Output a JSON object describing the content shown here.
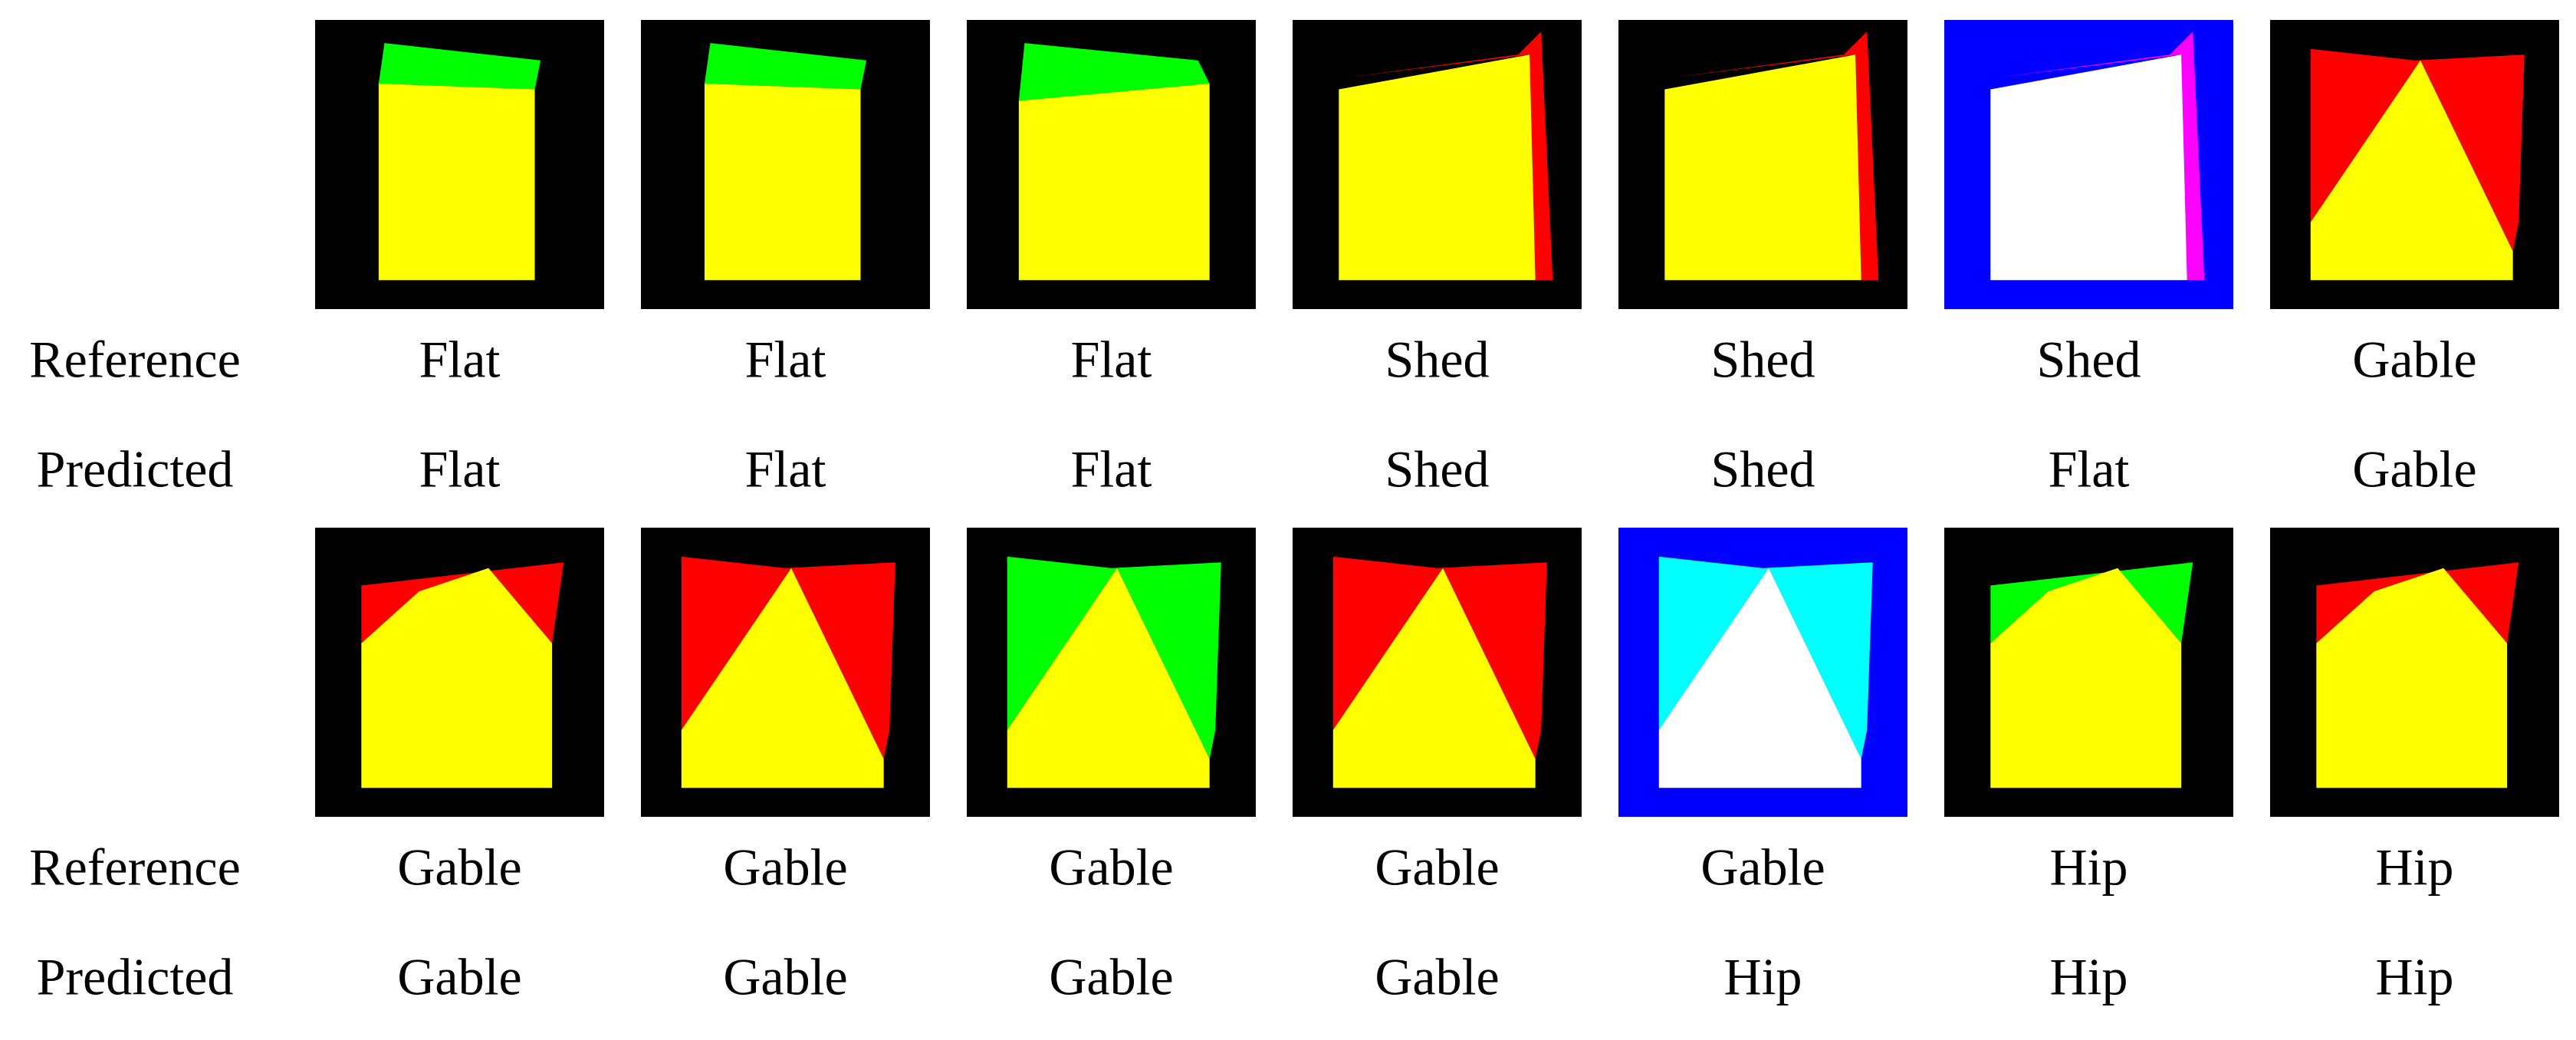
{
  "rows": [
    {
      "reference_label": "Reference",
      "predicted_label": "Predicted",
      "reference": [
        "Flat",
        "Flat",
        "Flat",
        "Shed",
        "Shed",
        "Shed",
        "Gable"
      ],
      "predicted": [
        "Flat",
        "Flat",
        "Flat",
        "Shed",
        "Shed",
        "Flat",
        "Gable"
      ]
    },
    {
      "reference_label": "Reference",
      "predicted_label": "Predicted",
      "reference": [
        "Gable",
        "Gable",
        "Gable",
        "Gable",
        "Gable",
        "Hip",
        "Hip"
      ],
      "predicted": [
        "Gable",
        "Gable",
        "Gable",
        "Gable",
        "Hip",
        "Hip",
        "Hip"
      ]
    }
  ]
}
